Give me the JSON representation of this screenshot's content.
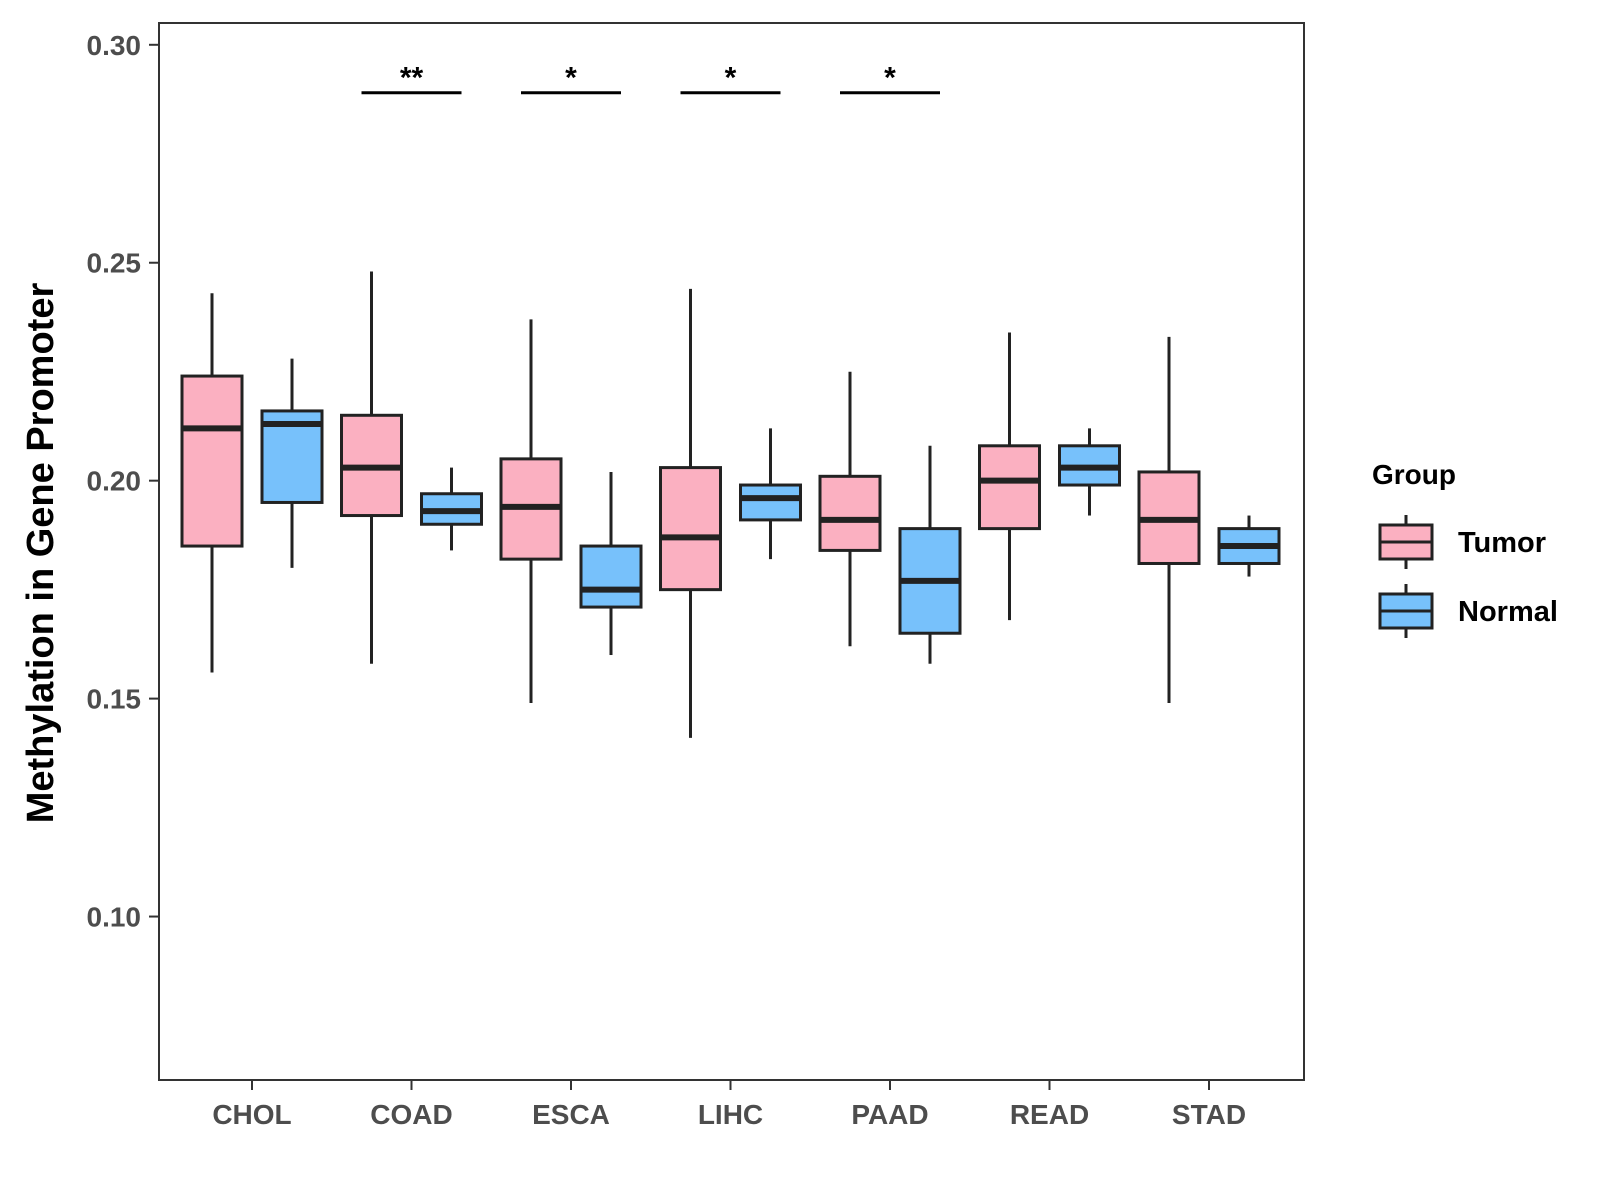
{
  "chart_data": {
    "type": "boxplot",
    "title": "",
    "xlabel": "",
    "ylabel": "Methylation in Gene Promoter",
    "ylim": [
      0.0625,
      0.305
    ],
    "yticks": [
      "0.10",
      "0.15",
      "0.20",
      "0.25",
      "0.30"
    ],
    "grid": false,
    "legend": {
      "title": "Group",
      "position": "right"
    },
    "categories": [
      "CHOL",
      "COAD",
      "ESCA",
      "LIHC",
      "PAAD",
      "READ",
      "STAD"
    ],
    "series": [
      {
        "name": "Tumor",
        "color": "#fbb0c1",
        "boxes": [
          {
            "min": 0.156,
            "q1": 0.185,
            "median": 0.212,
            "q3": 0.224,
            "max": 0.243
          },
          {
            "min": 0.158,
            "q1": 0.192,
            "median": 0.203,
            "q3": 0.215,
            "max": 0.248
          },
          {
            "min": 0.149,
            "q1": 0.182,
            "median": 0.194,
            "q3": 0.205,
            "max": 0.237
          },
          {
            "min": 0.141,
            "q1": 0.175,
            "median": 0.187,
            "q3": 0.203,
            "max": 0.244
          },
          {
            "min": 0.162,
            "q1": 0.184,
            "median": 0.191,
            "q3": 0.201,
            "max": 0.225
          },
          {
            "min": 0.168,
            "q1": 0.189,
            "median": 0.2,
            "q3": 0.208,
            "max": 0.234
          },
          {
            "min": 0.149,
            "q1": 0.181,
            "median": 0.191,
            "q3": 0.202,
            "max": 0.233
          }
        ]
      },
      {
        "name": "Normal",
        "color": "#77c1fb",
        "boxes": [
          {
            "min": 0.18,
            "q1": 0.195,
            "median": 0.213,
            "q3": 0.216,
            "max": 0.228
          },
          {
            "min": 0.184,
            "q1": 0.19,
            "median": 0.193,
            "q3": 0.197,
            "max": 0.203
          },
          {
            "min": 0.16,
            "q1": 0.171,
            "median": 0.175,
            "q3": 0.185,
            "max": 0.202
          },
          {
            "min": 0.182,
            "q1": 0.191,
            "median": 0.196,
            "q3": 0.199,
            "max": 0.212
          },
          {
            "min": 0.158,
            "q1": 0.165,
            "median": 0.177,
            "q3": 0.189,
            "max": 0.208
          },
          {
            "min": 0.192,
            "q1": 0.199,
            "median": 0.203,
            "q3": 0.208,
            "max": 0.212
          },
          {
            "min": 0.178,
            "q1": 0.181,
            "median": 0.185,
            "q3": 0.189,
            "max": 0.192
          }
        ]
      }
    ],
    "annotations": [
      {
        "category": "COAD",
        "label": "**",
        "y": 0.289
      },
      {
        "category": "ESCA",
        "label": "*",
        "y": 0.289
      },
      {
        "category": "LIHC",
        "label": "*",
        "y": 0.289
      },
      {
        "category": "PAAD",
        "label": "*",
        "y": 0.289
      }
    ]
  }
}
